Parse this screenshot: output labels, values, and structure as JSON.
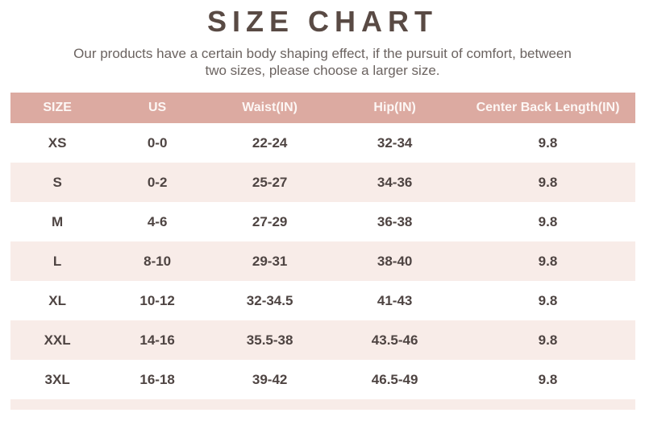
{
  "page": {
    "title": "SIZE CHART",
    "subtitle_line1": "Our products have a certain body shaping effect, if the pursuit of comfort, between",
    "subtitle_line2": "two sizes, please choose a larger size."
  },
  "colors": {
    "header_bg": "#dcaaa1",
    "alt_row_bg": "#f8ece8",
    "title_text": "#594a44",
    "subtitle_text": "#6b6360",
    "header_text": "#fdf7f5",
    "cell_text": "#4e4442"
  },
  "chart_data": {
    "type": "table",
    "title": "SIZE CHART",
    "columns": [
      "SIZE",
      "US",
      "Waist(IN)",
      "Hip(IN)",
      "Center Back Length(IN)"
    ],
    "rows": [
      [
        "XS",
        "0-0",
        "22-24",
        "32-34",
        "9.8"
      ],
      [
        "S",
        "0-2",
        "25-27",
        "34-36",
        "9.8"
      ],
      [
        "M",
        "4-6",
        "27-29",
        "36-38",
        "9.8"
      ],
      [
        "L",
        "8-10",
        "29-31",
        "38-40",
        "9.8"
      ],
      [
        "XL",
        "10-12",
        "32-34.5",
        "41-43",
        "9.8"
      ],
      [
        "XXL",
        "14-16",
        "35.5-38",
        "43.5-46",
        "9.8"
      ],
      [
        "3XL",
        "16-18",
        "39-42",
        "46.5-49",
        "9.8"
      ]
    ]
  },
  "table": {
    "columns": [
      "SIZE",
      "US",
      "Waist(IN)",
      "Hip(IN)",
      "Center Back Length(IN)"
    ],
    "rows": [
      {
        "size": "XS",
        "us": "0-0",
        "waist": "22-24",
        "hip": "32-34",
        "cbl": "9.8"
      },
      {
        "size": "S",
        "us": "0-2",
        "waist": "25-27",
        "hip": "34-36",
        "cbl": "9.8"
      },
      {
        "size": "M",
        "us": "4-6",
        "waist": "27-29",
        "hip": "36-38",
        "cbl": "9.8"
      },
      {
        "size": "L",
        "us": "8-10",
        "waist": "29-31",
        "hip": "38-40",
        "cbl": "9.8"
      },
      {
        "size": "XL",
        "us": "10-12",
        "waist": "32-34.5",
        "hip": "41-43",
        "cbl": "9.8"
      },
      {
        "size": "XXL",
        "us": "14-16",
        "waist": "35.5-38",
        "hip": "43.5-46",
        "cbl": "9.8"
      },
      {
        "size": "3XL",
        "us": "16-18",
        "waist": "39-42",
        "hip": "46.5-49",
        "cbl": "9.8"
      }
    ]
  }
}
